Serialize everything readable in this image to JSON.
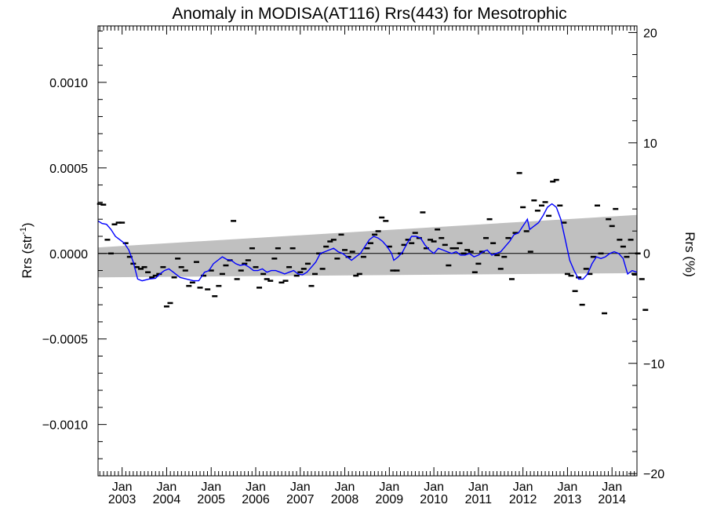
{
  "chart_data": {
    "type": "line",
    "title": "Anomaly in MODISA(AT116) Rrs(443) for Mesotrophic",
    "ylabel_left": "Rrs (str",
    "ylabel_left_sup": "-1",
    "ylabel_left_close": ")",
    "ylabel_right": "Rrs (%)",
    "ylim": [
      -0.0013,
      0.00133
    ],
    "ylim_right": [
      -20.2,
      20.6
    ],
    "xlim": [
      2002.46,
      2014.56
    ],
    "left_ticks": [
      {
        "v": 0.001,
        "label": "0.0010"
      },
      {
        "v": 0.0005,
        "label": "0.0005"
      },
      {
        "v": 0.0,
        "label": "0.0000"
      },
      {
        "v": -0.0005,
        "label": "−0.0005"
      },
      {
        "v": -0.001,
        "label": "−0.0010"
      }
    ],
    "right_ticks": [
      {
        "v": 20,
        "label": "20"
      },
      {
        "v": 10,
        "label": "10"
      },
      {
        "v": 0,
        "label": "0"
      },
      {
        "v": -10,
        "label": "−10"
      },
      {
        "v": -20,
        "label": "−20"
      }
    ],
    "x_ticks": [
      {
        "v": 2003.0,
        "month": "Jan",
        "year": "2003"
      },
      {
        "v": 2004.0,
        "month": "Jan",
        "year": "2004"
      },
      {
        "v": 2005.0,
        "month": "Jan",
        "year": "2005"
      },
      {
        "v": 2006.0,
        "month": "Jan",
        "year": "2006"
      },
      {
        "v": 2007.0,
        "month": "Jan",
        "year": "2007"
      },
      {
        "v": 2008.0,
        "month": "Jan",
        "year": "2008"
      },
      {
        "v": 2009.0,
        "month": "Jan",
        "year": "2009"
      },
      {
        "v": 2010.0,
        "month": "Jan",
        "year": "2010"
      },
      {
        "v": 2011.0,
        "month": "Jan",
        "year": "2011"
      },
      {
        "v": 2012.0,
        "month": "Jan",
        "year": "2012"
      },
      {
        "v": 2013.0,
        "month": "Jan",
        "year": "2013"
      },
      {
        "v": 2014.0,
        "month": "Jan",
        "year": "2014"
      }
    ],
    "confidence_band": {
      "x": [
        2002.46,
        2014.56
      ],
      "upper": [
        3.5e-05,
        0.000225
      ],
      "lower": [
        -0.00014,
        -0.000115
      ]
    },
    "monthly_points": [
      [
        2002.5,
        0.00029
      ],
      [
        2002.58,
        0.000285
      ],
      [
        2002.67,
        8e-05
      ],
      [
        2002.75,
        0.0
      ],
      [
        2002.83,
        0.00017
      ],
      [
        2002.92,
        0.00018
      ],
      [
        2003.0,
        0.00018
      ],
      [
        2003.08,
        6e-05
      ],
      [
        2003.17,
        -2e-05
      ],
      [
        2003.25,
        -6e-05
      ],
      [
        2003.33,
        -8e-05
      ],
      [
        2003.42,
        -9e-05
      ],
      [
        2003.5,
        -8e-05
      ],
      [
        2003.58,
        -0.00011
      ],
      [
        2003.67,
        -0.00014
      ],
      [
        2003.75,
        -0.00013
      ],
      [
        2003.83,
        -0.00012
      ],
      [
        2003.92,
        -8e-05
      ],
      [
        2004.0,
        -0.00031
      ],
      [
        2004.08,
        -0.00029
      ],
      [
        2004.17,
        -0.00014
      ],
      [
        2004.25,
        -3e-05
      ],
      [
        2004.33,
        -8e-05
      ],
      [
        2004.42,
        -0.0001
      ],
      [
        2004.5,
        -0.00019
      ],
      [
        2004.58,
        -0.00017
      ],
      [
        2004.67,
        -5e-05
      ],
      [
        2004.75,
        -0.0002
      ],
      [
        2004.83,
        -0.00013
      ],
      [
        2004.92,
        -0.00021
      ],
      [
        2005.0,
        -0.0001
      ],
      [
        2005.08,
        -0.00025
      ],
      [
        2005.17,
        -0.00019
      ],
      [
        2005.25,
        -0.00012
      ],
      [
        2005.33,
        -7e-05
      ],
      [
        2005.42,
        -4e-05
      ],
      [
        2005.5,
        0.00019
      ],
      [
        2005.58,
        -0.00015
      ],
      [
        2005.67,
        -0.0001
      ],
      [
        2005.75,
        -6e-05
      ],
      [
        2005.83,
        -4e-05
      ],
      [
        2005.92,
        3e-05
      ],
      [
        2006.0,
        -8e-05
      ],
      [
        2006.08,
        -0.0002
      ],
      [
        2006.17,
        -0.00012
      ],
      [
        2006.25,
        -0.00015
      ],
      [
        2006.33,
        -0.00016
      ],
      [
        2006.42,
        -3e-05
      ],
      [
        2006.5,
        3e-05
      ],
      [
        2006.58,
        -0.00017
      ],
      [
        2006.67,
        -0.00016
      ],
      [
        2006.75,
        -8e-05
      ],
      [
        2006.83,
        3e-05
      ],
      [
        2006.92,
        -0.00013
      ],
      [
        2007.0,
        -0.00011
      ],
      [
        2007.08,
        -9e-05
      ],
      [
        2007.17,
        -6e-05
      ],
      [
        2007.25,
        -0.00019
      ],
      [
        2007.33,
        -0.00012
      ],
      [
        2007.42,
        0.0
      ],
      [
        2007.5,
        -9e-05
      ],
      [
        2007.58,
        4e-05
      ],
      [
        2007.67,
        7e-05
      ],
      [
        2007.75,
        8e-05
      ],
      [
        2007.83,
        -3e-05
      ],
      [
        2007.92,
        0.00011
      ],
      [
        2008.0,
        2e-05
      ],
      [
        2008.08,
        -2e-05
      ],
      [
        2008.17,
        1e-05
      ],
      [
        2008.25,
        -0.00013
      ],
      [
        2008.33,
        -0.00012
      ],
      [
        2008.42,
        -2e-05
      ],
      [
        2008.5,
        3e-05
      ],
      [
        2008.58,
        6e-05
      ],
      [
        2008.67,
        0.00011
      ],
      [
        2008.75,
        0.00013
      ],
      [
        2008.83,
        0.00021
      ],
      [
        2008.92,
        0.00019
      ],
      [
        2009.0,
        4e-05
      ],
      [
        2009.08,
        -0.0001
      ],
      [
        2009.17,
        -0.0001
      ],
      [
        2009.25,
        0.0
      ],
      [
        2009.33,
        5e-05
      ],
      [
        2009.42,
        8e-05
      ],
      [
        2009.5,
        6e-05
      ],
      [
        2009.58,
        0.00012
      ],
      [
        2009.67,
        9e-05
      ],
      [
        2009.75,
        0.00024
      ],
      [
        2009.83,
        3e-05
      ],
      [
        2009.92,
        8e-05
      ],
      [
        2010.0,
        7e-05
      ],
      [
        2010.08,
        0.00014
      ],
      [
        2010.17,
        9e-05
      ],
      [
        2010.25,
        5e-05
      ],
      [
        2010.33,
        -7e-05
      ],
      [
        2010.42,
        3e-05
      ],
      [
        2010.5,
        3e-05
      ],
      [
        2010.58,
        6e-05
      ],
      [
        2010.67,
        0.0
      ],
      [
        2010.75,
        2e-05
      ],
      [
        2010.83,
        1e-05
      ],
      [
        2010.92,
        -0.00011
      ],
      [
        2011.0,
        -6e-05
      ],
      [
        2011.08,
        1e-05
      ],
      [
        2011.17,
        9e-05
      ],
      [
        2011.25,
        0.0002
      ],
      [
        2011.33,
        6e-05
      ],
      [
        2011.42,
        -1e-05
      ],
      [
        2011.5,
        -9e-05
      ],
      [
        2011.58,
        -2e-05
      ],
      [
        2011.67,
        9e-05
      ],
      [
        2011.75,
        -0.00015
      ],
      [
        2011.83,
        0.00012
      ],
      [
        2011.92,
        0.00047
      ],
      [
        2012.0,
        0.00027
      ],
      [
        2012.08,
        0.00013
      ],
      [
        2012.17,
        1e-05
      ],
      [
        2012.25,
        0.00031
      ],
      [
        2012.33,
        0.00025
      ],
      [
        2012.42,
        0.00028
      ],
      [
        2012.5,
        0.0003
      ],
      [
        2012.58,
        0.00022
      ],
      [
        2012.67,
        0.00042
      ],
      [
        2012.75,
        0.00043
      ],
      [
        2012.83,
        0.00028
      ],
      [
        2012.92,
        0.00018
      ],
      [
        2013.0,
        -0.00012
      ],
      [
        2013.08,
        -0.00013
      ],
      [
        2013.17,
        -0.00022
      ],
      [
        2013.25,
        -0.00014
      ],
      [
        2013.33,
        -0.0003
      ],
      [
        2013.42,
        -9e-05
      ],
      [
        2013.5,
        -0.00012
      ],
      [
        2013.58,
        -2e-05
      ],
      [
        2013.67,
        0.00028
      ],
      [
        2013.75,
        0.0
      ],
      [
        2013.83,
        -0.00035
      ],
      [
        2013.92,
        0.0002
      ],
      [
        2014.0,
        0.00016
      ],
      [
        2014.08,
        0.00026
      ],
      [
        2014.17,
        8e-05
      ],
      [
        2014.25,
        4e-05
      ],
      [
        2014.33,
        -2e-05
      ],
      [
        2014.42,
        8e-05
      ],
      [
        2014.5,
        -0.00012
      ],
      [
        2014.58,
        0.0
      ],
      [
        2014.67,
        -0.00015
      ],
      [
        2014.75,
        -0.00033
      ]
    ],
    "running_mean": [
      [
        2002.46,
        0.00019
      ],
      [
        2002.55,
        0.000175
      ],
      [
        2002.65,
        0.00017
      ],
      [
        2002.75,
        0.00014
      ],
      [
        2002.85,
        0.0001
      ],
      [
        2002.95,
        8e-05
      ],
      [
        2003.05,
        6e-05
      ],
      [
        2003.15,
        2e-05
      ],
      [
        2003.25,
        -5e-05
      ],
      [
        2003.35,
        -0.00015
      ],
      [
        2003.45,
        -0.00016
      ],
      [
        2003.6,
        -0.00015
      ],
      [
        2003.75,
        -0.000145
      ],
      [
        2003.85,
        -0.00012
      ],
      [
        2003.95,
        -0.0001
      ],
      [
        2004.05,
        -9e-05
      ],
      [
        2004.15,
        -0.00011
      ],
      [
        2004.3,
        -0.00014
      ],
      [
        2004.45,
        -0.00015
      ],
      [
        2004.6,
        -0.00016
      ],
      [
        2004.72,
        -0.00016
      ],
      [
        2004.85,
        -0.00011
      ],
      [
        2004.95,
        -0.0001
      ],
      [
        2005.05,
        -6e-05
      ],
      [
        2005.15,
        -4e-05
      ],
      [
        2005.25,
        -2e-05
      ],
      [
        2005.35,
        -3.5e-05
      ],
      [
        2005.45,
        -4e-05
      ],
      [
        2005.55,
        -6e-05
      ],
      [
        2005.65,
        -7e-05
      ],
      [
        2005.75,
        -6.5e-05
      ],
      [
        2005.85,
        -8e-05
      ],
      [
        2005.95,
        -0.0001
      ],
      [
        2006.05,
        -0.0001
      ],
      [
        2006.15,
        -9e-05
      ],
      [
        2006.25,
        -0.00011
      ],
      [
        2006.35,
        -0.0001
      ],
      [
        2006.45,
        -0.0001
      ],
      [
        2006.55,
        -0.00011
      ],
      [
        2006.65,
        -0.00012
      ],
      [
        2006.75,
        -0.00011
      ],
      [
        2006.85,
        -0.0001
      ],
      [
        2006.95,
        -0.00012
      ],
      [
        2007.05,
        -0.000125
      ],
      [
        2007.15,
        -0.00011
      ],
      [
        2007.25,
        -8e-05
      ],
      [
        2007.35,
        -5e-05
      ],
      [
        2007.45,
        0.0
      ],
      [
        2007.55,
        1e-05
      ],
      [
        2007.65,
        2e-05
      ],
      [
        2007.75,
        3e-05
      ],
      [
        2007.85,
        1e-05
      ],
      [
        2007.95,
        0.0
      ],
      [
        2008.05,
        -2e-05
      ],
      [
        2008.15,
        -4e-05
      ],
      [
        2008.25,
        -2e-05
      ],
      [
        2008.35,
        0.0
      ],
      [
        2008.45,
        4e-05
      ],
      [
        2008.55,
        8e-05
      ],
      [
        2008.65,
        0.0001
      ],
      [
        2008.75,
        9e-05
      ],
      [
        2008.85,
        7e-05
      ],
      [
        2008.95,
        4e-05
      ],
      [
        2009.05,
        0.0
      ],
      [
        2009.1,
        -4e-05
      ],
      [
        2009.2,
        -2e-05
      ],
      [
        2009.3,
        1e-05
      ],
      [
        2009.4,
        6e-05
      ],
      [
        2009.5,
        0.0001
      ],
      [
        2009.6,
        0.0001
      ],
      [
        2009.7,
        9e-05
      ],
      [
        2009.8,
        5e-05
      ],
      [
        2009.9,
        2e-05
      ],
      [
        2010.0,
        0.0
      ],
      [
        2010.1,
        3e-05
      ],
      [
        2010.2,
        2e-05
      ],
      [
        2010.3,
        1e-05
      ],
      [
        2010.4,
        0.0
      ],
      [
        2010.5,
        1e-05
      ],
      [
        2010.6,
        -1e-05
      ],
      [
        2010.7,
        -1e-05
      ],
      [
        2010.8,
        0.0
      ],
      [
        2010.9,
        -2e-05
      ],
      [
        2011.0,
        -1e-05
      ],
      [
        2011.1,
        1e-05
      ],
      [
        2011.2,
        2e-05
      ],
      [
        2011.3,
        -1e-05
      ],
      [
        2011.4,
        0.0
      ],
      [
        2011.5,
        1e-05
      ],
      [
        2011.6,
        4e-05
      ],
      [
        2011.7,
        7e-05
      ],
      [
        2011.8,
        0.00011
      ],
      [
        2011.9,
        0.00012
      ],
      [
        2011.95,
        0.00014
      ],
      [
        2012.05,
        0.00018
      ],
      [
        2012.1,
        0.0002
      ],
      [
        2012.15,
        0.00014
      ],
      [
        2012.25,
        0.00016
      ],
      [
        2012.35,
        0.00018
      ],
      [
        2012.45,
        0.00022
      ],
      [
        2012.55,
        0.00027
      ],
      [
        2012.65,
        0.00029
      ],
      [
        2012.75,
        0.00027
      ],
      [
        2012.85,
        0.0002
      ],
      [
        2012.95,
        8e-05
      ],
      [
        2013.05,
        -4e-05
      ],
      [
        2013.15,
        -0.0001
      ],
      [
        2013.25,
        -0.00015
      ],
      [
        2013.35,
        -0.00015
      ],
      [
        2013.45,
        -0.00012
      ],
      [
        2013.55,
        -6e-05
      ],
      [
        2013.65,
        -2e-05
      ],
      [
        2013.75,
        -3e-05
      ],
      [
        2013.85,
        -2e-05
      ],
      [
        2013.95,
        0.0
      ],
      [
        2014.05,
        1e-05
      ],
      [
        2014.15,
        0.0
      ],
      [
        2014.25,
        -3e-05
      ],
      [
        2014.35,
        -0.00012
      ],
      [
        2014.45,
        -0.0001
      ],
      [
        2014.56,
        -0.00011
      ]
    ],
    "grid": false,
    "colors": {
      "running_mean": "#0000ff",
      "band": "#c0c0c0",
      "points": "#000000",
      "zero_line": "#000000"
    }
  }
}
